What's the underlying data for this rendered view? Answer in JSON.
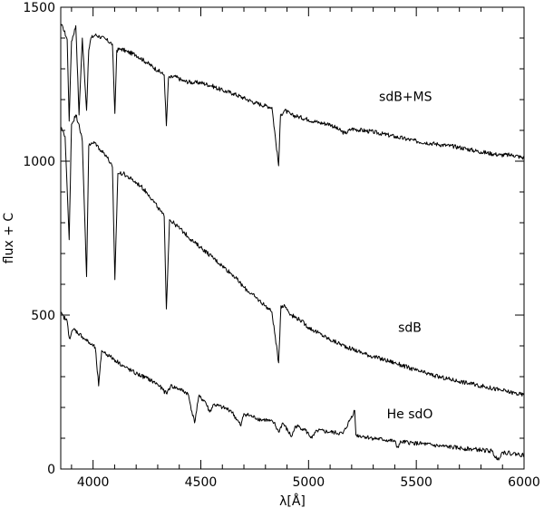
{
  "chart_data": {
    "type": "line",
    "title": "",
    "xlabel": "λ[Å]",
    "ylabel": "flux + C",
    "xlim": [
      3850,
      6000
    ],
    "ylim": [
      0,
      1500
    ],
    "x_ticks": [
      4000,
      4500,
      5000,
      5500,
      6000
    ],
    "y_ticks": [
      0,
      500,
      1000,
      1500
    ],
    "grid": false,
    "legend": "none",
    "line_color": "#000000",
    "series": [
      {
        "name": "sdB+MS",
        "x": [
          3850,
          3860,
          3880,
          3889,
          3900,
          3920,
          3935,
          3950,
          3970,
          3980,
          3990,
          4010,
          4030,
          4060,
          4090,
          4101,
          4110,
          4130,
          4160,
          4200,
          4250,
          4300,
          4330,
          4340,
          4350,
          4380,
          4420,
          4471,
          4500,
          4550,
          4600,
          4650,
          4700,
          4750,
          4800,
          4830,
          4861,
          4870,
          4890,
          4920,
          4950,
          5000,
          5050,
          5100,
          5169,
          5200,
          5300,
          5400,
          5500,
          5600,
          5700,
          5800,
          5890,
          5950,
          6000
        ],
        "y": [
          1440,
          1435,
          1395,
          1130,
          1390,
          1440,
          1150,
          1400,
          1165,
          1360,
          1400,
          1410,
          1405,
          1395,
          1380,
          1155,
          1360,
          1365,
          1355,
          1345,
          1320,
          1295,
          1280,
          1115,
          1270,
          1275,
          1260,
          1255,
          1255,
          1245,
          1230,
          1220,
          1205,
          1190,
          1180,
          1175,
          985,
          1150,
          1165,
          1150,
          1145,
          1135,
          1125,
          1120,
          1090,
          1105,
          1095,
          1080,
          1065,
          1055,
          1045,
          1030,
          1020,
          1020,
          1010
        ]
      },
      {
        "name": "sdB",
        "x": [
          3850,
          3860,
          3870,
          3889,
          3900,
          3920,
          3935,
          3950,
          3970,
          3980,
          3990,
          4010,
          4030,
          4060,
          4090,
          4101,
          4115,
          4140,
          4180,
          4220,
          4260,
          4300,
          4330,
          4340,
          4355,
          4380,
          4420,
          4471,
          4500,
          4550,
          4600,
          4650,
          4700,
          4750,
          4800,
          4830,
          4861,
          4872,
          4890,
          4920,
          4960,
          5000,
          5100,
          5200,
          5300,
          5400,
          5500,
          5600,
          5700,
          5800,
          5900,
          6000
        ],
        "y": [
          1105,
          1100,
          1080,
          745,
          1120,
          1150,
          1120,
          1065,
          625,
          1050,
          1055,
          1060,
          1040,
          1020,
          980,
          615,
          960,
          960,
          940,
          920,
          890,
          850,
          820,
          520,
          810,
          795,
          770,
          735,
          720,
          690,
          660,
          630,
          590,
          560,
          530,
          510,
          345,
          530,
          530,
          500,
          485,
          460,
          420,
          390,
          365,
          345,
          320,
          300,
          285,
          270,
          255,
          240
        ]
      },
      {
        "name": "He sdO",
        "x": [
          3850,
          3880,
          3890,
          3910,
          3950,
          3990,
          4010,
          4026,
          4040,
          4080,
          4120,
          4150,
          4200,
          4250,
          4300,
          4340,
          4360,
          4400,
          4440,
          4471,
          4490,
          4520,
          4541,
          4560,
          4600,
          4640,
          4686,
          4700,
          4740,
          4780,
          4800,
          4840,
          4861,
          4880,
          4921,
          4940,
          4980,
          5016,
          5040,
          5100,
          5160,
          5214,
          5220,
          5260,
          5300,
          5350,
          5400,
          5411,
          5430,
          5480,
          5550,
          5600,
          5650,
          5700,
          5750,
          5800,
          5850,
          5876,
          5900,
          5950,
          6000
        ],
        "y": [
          505,
          480,
          425,
          455,
          430,
          405,
          395,
          270,
          385,
          365,
          345,
          330,
          310,
          295,
          275,
          245,
          270,
          260,
          245,
          150,
          235,
          220,
          185,
          210,
          200,
          190,
          140,
          180,
          170,
          160,
          160,
          150,
          120,
          150,
          105,
          140,
          130,
          100,
          125,
          120,
          115,
          190,
          110,
          105,
          100,
          95,
          90,
          70,
          88,
          85,
          80,
          75,
          72,
          68,
          65,
          62,
          58,
          30,
          55,
          50,
          45
        ]
      }
    ],
    "annotations": [
      {
        "text": "sdB+MS",
        "x": 5450,
        "y": 1195
      },
      {
        "text": "sdB",
        "x": 5470,
        "y": 445
      },
      {
        "text": "He sdO",
        "x": 5470,
        "y": 165
      }
    ]
  }
}
